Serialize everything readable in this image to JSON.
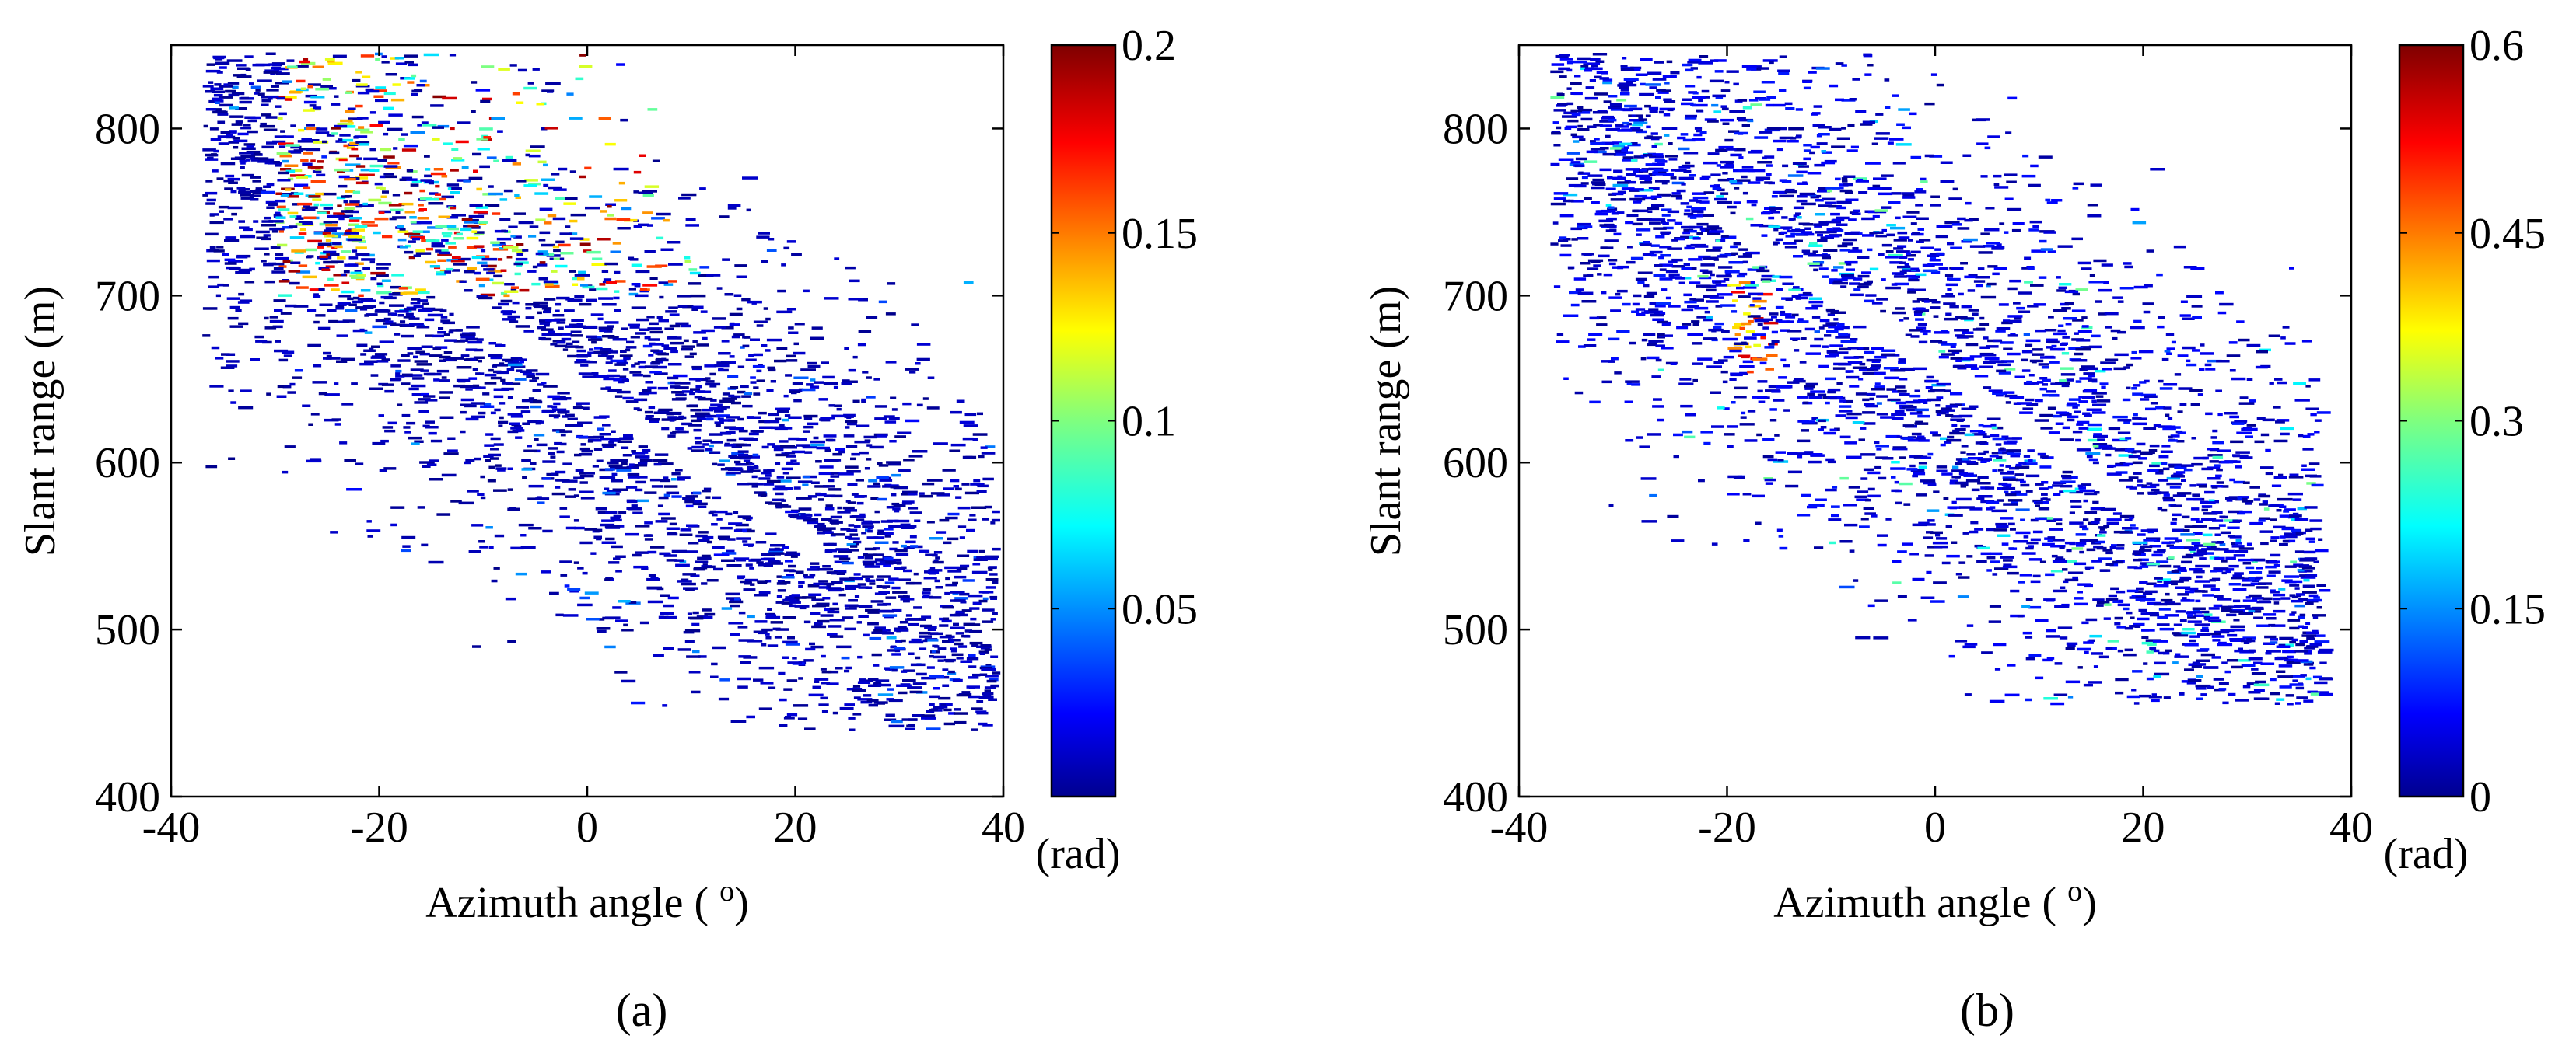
{
  "chart_data": [
    {
      "type": "heatmap",
      "panel_label": "(a)",
      "xlabel": "Azimuth angle (o)",
      "ylabel": "Slant range (m)",
      "xlim": [
        -40,
        40
      ],
      "ylim": [
        400,
        850
      ],
      "xticks": [
        "-40",
        "-20",
        "0",
        "20",
        "40"
      ],
      "yticks": [
        "400",
        "500",
        "600",
        "700",
        "800"
      ],
      "colorbar": {
        "colormap": "jet",
        "range": [
          0,
          0.2
        ],
        "tick_values": [
          0.05,
          0.1,
          0.15,
          0.2
        ],
        "tick_labels": [
          "0.05",
          "0.1",
          "0.15",
          "0.2"
        ],
        "unit": "(rad)"
      },
      "pattern": {
        "scatter_bounds_az": [
          -37,
          39
        ],
        "scatter_bounds_range": [
          440,
          845
        ],
        "typical_value": 0.01,
        "elevated_region": {
          "az": [
            -30,
            10
          ],
          "range": [
            700,
            845
          ],
          "value_range": [
            0.05,
            0.2
          ]
        }
      }
    },
    {
      "type": "heatmap",
      "panel_label": "(b)",
      "xlabel": "Azimuth angle (o)",
      "ylabel": "Slant range (m)",
      "xlim": [
        -40,
        40
      ],
      "ylim": [
        400,
        850
      ],
      "xticks": [
        "-40",
        "-20",
        "0",
        "20",
        "40"
      ],
      "yticks": [
        "400",
        "500",
        "600",
        "700",
        "800"
      ],
      "colorbar": {
        "colormap": "jet",
        "range": [
          0,
          0.6
        ],
        "tick_values": [
          0,
          0.15,
          0.3,
          0.45,
          0.6
        ],
        "tick_labels": [
          "0",
          "0.15",
          "0.3",
          "0.45",
          "0.6"
        ],
        "unit": "(rad)"
      },
      "pattern": {
        "scatter_bounds_az": [
          -37,
          37
        ],
        "scatter_bounds_range": [
          455,
          845
        ],
        "typical_value": 0.05,
        "elevated_region": {
          "az": [
            -20,
            -16
          ],
          "range": [
            650,
            710
          ],
          "value_range": [
            0.35,
            0.55
          ]
        }
      }
    }
  ],
  "colors": {
    "axis": "#000000",
    "background": "#ffffff"
  }
}
